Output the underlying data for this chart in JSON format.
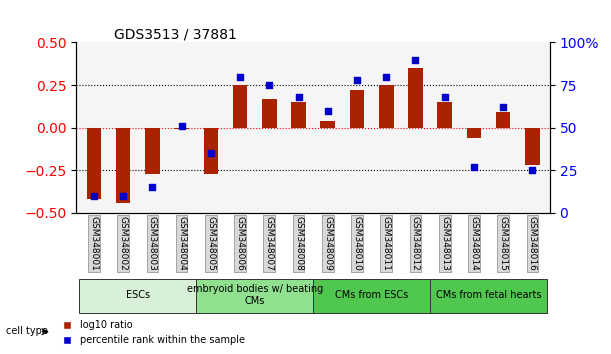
{
  "title": "GDS3513 / 37881",
  "samples": [
    "GSM348001",
    "GSM348002",
    "GSM348003",
    "GSM348004",
    "GSM348005",
    "GSM348006",
    "GSM348007",
    "GSM348008",
    "GSM348009",
    "GSM348010",
    "GSM348011",
    "GSM348012",
    "GSM348013",
    "GSM348014",
    "GSM348015",
    "GSM348016"
  ],
  "log10_ratio": [
    -0.42,
    -0.44,
    -0.27,
    -0.01,
    -0.27,
    0.25,
    0.17,
    0.15,
    0.04,
    0.22,
    0.25,
    0.35,
    0.15,
    -0.06,
    0.09,
    -0.22
  ],
  "percentile_rank": [
    10,
    10,
    15,
    51,
    35,
    80,
    75,
    68,
    60,
    78,
    80,
    90,
    68,
    27,
    62,
    25
  ],
  "cell_type_groups": [
    {
      "label": "ESCs",
      "start": 0,
      "end": 3,
      "color": "#c8f0c8"
    },
    {
      "label": "embryoid bodies w/ beating\nCMs",
      "start": 4,
      "end": 7,
      "color": "#90e090"
    },
    {
      "label": "CMs from ESCs",
      "start": 8,
      "end": 11,
      "color": "#50c850"
    },
    {
      "label": "CMs from fetal hearts",
      "start": 12,
      "end": 15,
      "color": "#50c850"
    }
  ],
  "bar_color": "#aa2200",
  "dot_color": "#0000cc",
  "ylim_left": [
    -0.5,
    0.5
  ],
  "ylim_right": [
    0,
    100
  ],
  "yticks_left": [
    -0.5,
    -0.25,
    0,
    0.25,
    0.5
  ],
  "yticks_right": [
    0,
    25,
    50,
    75,
    100
  ],
  "hlines": [
    -0.25,
    0,
    0.25
  ],
  "background_color": "#ffffff"
}
